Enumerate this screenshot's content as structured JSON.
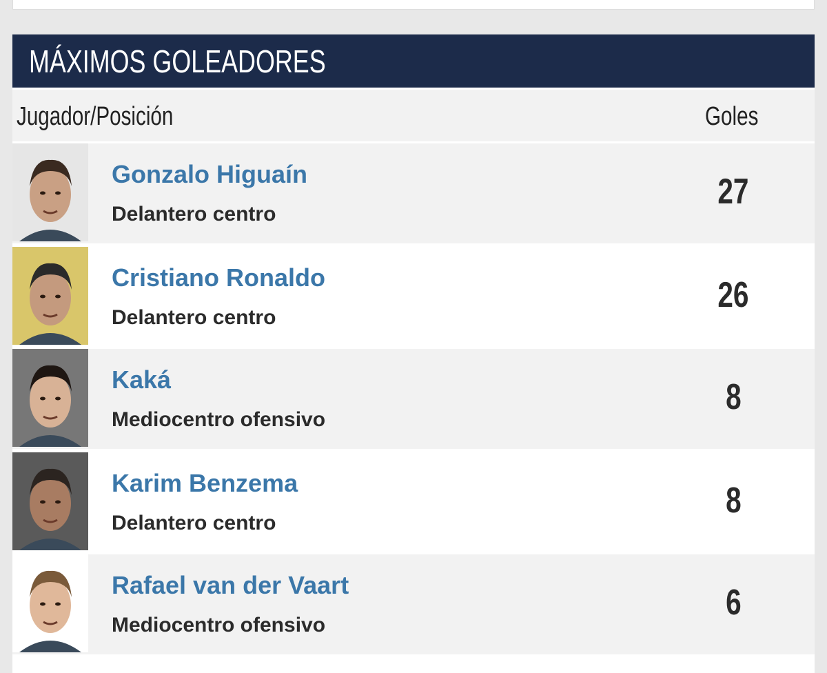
{
  "header": {
    "title": "MÁXIMOS GOLEADORES"
  },
  "table": {
    "columns": [
      "Jugador/Posición",
      "Goles"
    ],
    "rows": [
      {
        "name": "Gonzalo Higuaín",
        "position": "Delantero centro",
        "goals": 27
      },
      {
        "name": "Cristiano Ronaldo",
        "position": "Delantero centro",
        "goals": 26
      },
      {
        "name": "Kaká",
        "position": "Mediocentro ofensivo",
        "goals": 8
      },
      {
        "name": "Karim Benzema",
        "position": "Delantero centro",
        "goals": 8
      },
      {
        "name": "Rafael van der Vaart",
        "position": "Mediocentro ofensivo",
        "goals": 6
      }
    ]
  }
}
